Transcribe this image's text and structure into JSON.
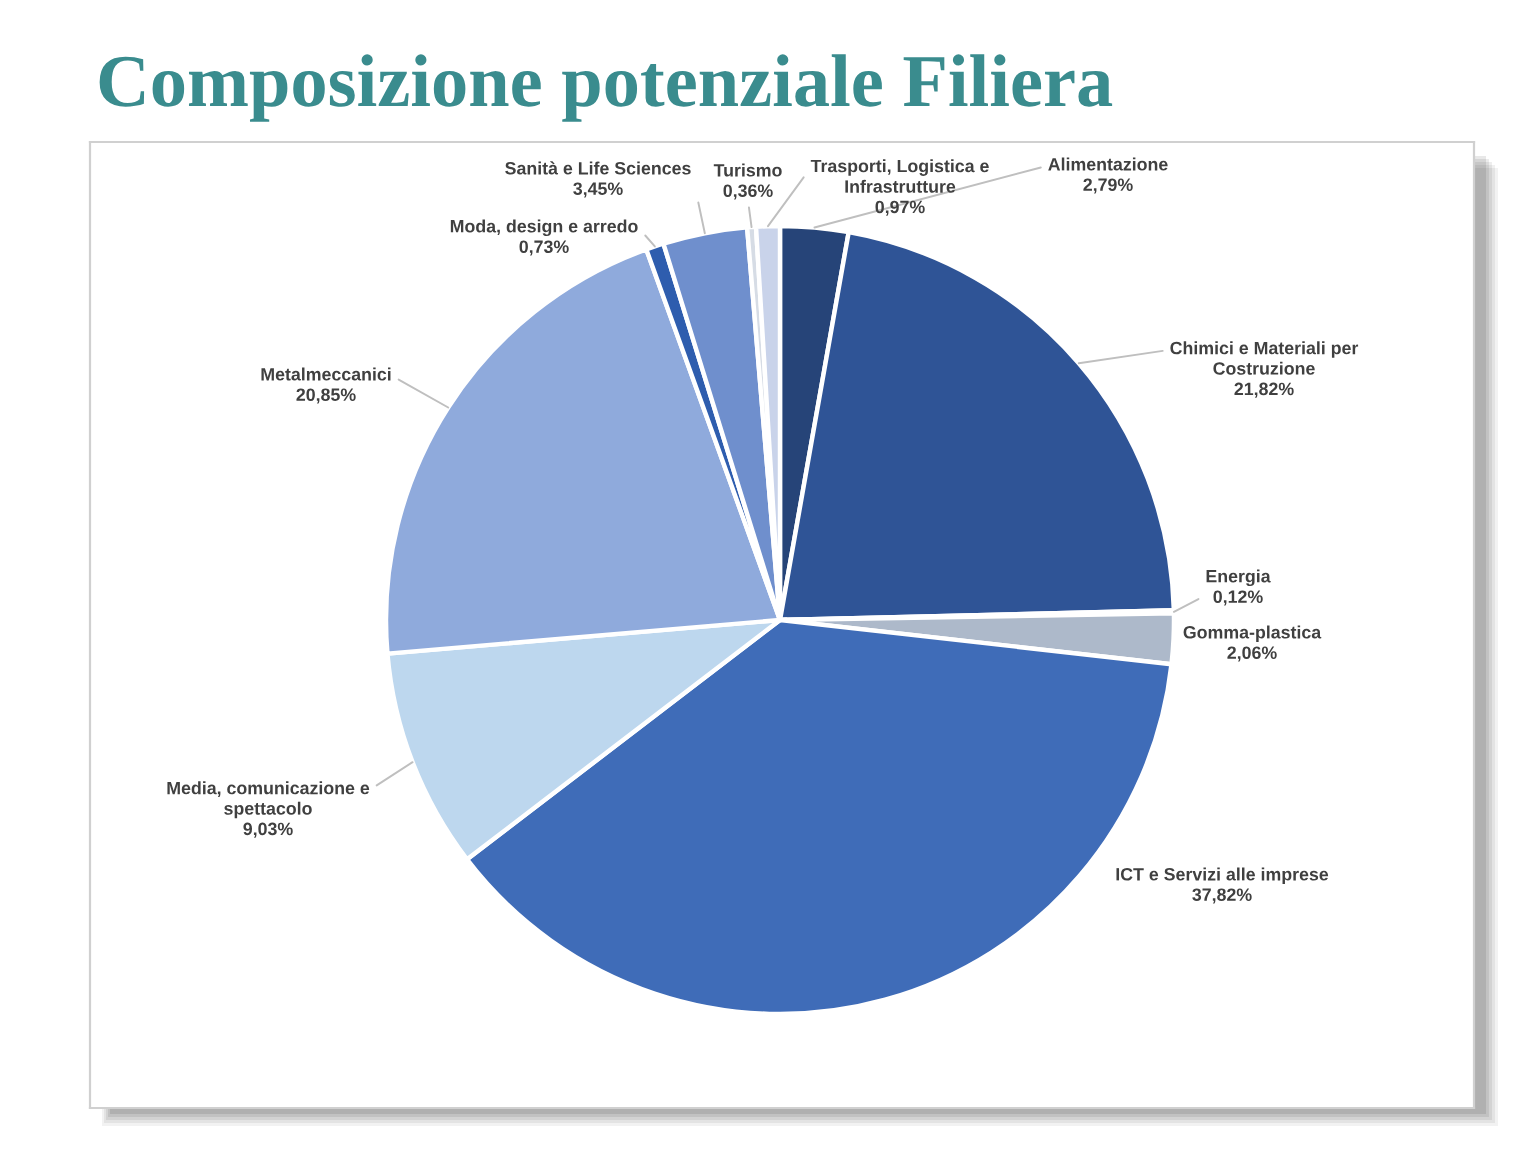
{
  "chart_data": {
    "type": "pie",
    "title": "Composizione potenziale Filiera",
    "categories": [
      "Alimentazione",
      "Chimici e Materiali per Costruzione",
      "Energia",
      "Gomma-plastica",
      "ICT e Servizi alle imprese",
      "Media, comunicazione e spettacolo",
      "Metalmeccanici",
      "Moda, design e arredo",
      "Sanità e Life Sciences",
      "Turismo",
      "Trasporti, Logistica e Infrastrutture"
    ],
    "values": [
      2.79,
      21.82,
      0.12,
      2.06,
      37.82,
      9.03,
      20.85,
      0.73,
      3.45,
      0.36,
      0.97
    ],
    "colors": [
      "#264478",
      "#2f5496",
      "#5b7db8",
      "#adb9ca",
      "#3f6cb8",
      "#bdd7ee",
      "#8faadc",
      "#2e5dae",
      "#6f8fcd",
      "#d6dce5",
      "#c9d3ea"
    ],
    "value_labels": [
      "2,79%",
      "21,82%",
      "0,12%",
      "2,06%",
      "37,82%",
      "9,03%",
      "20,85%",
      "0,73%",
      "3,45%",
      "0,36%",
      "0,97%"
    ]
  }
}
